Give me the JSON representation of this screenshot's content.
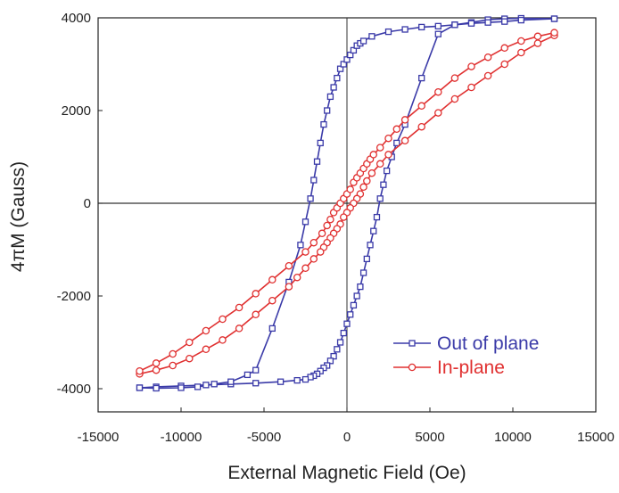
{
  "chart_data": {
    "type": "line",
    "title": "",
    "xlabel": "External Magnetic Field (Oe)",
    "ylabel": "4πM (Gauss)",
    "xlim": [
      -15000,
      15000
    ],
    "ylim": [
      -4500,
      4000
    ],
    "xticks": [
      -15000,
      -10000,
      -5000,
      0,
      5000,
      10000,
      15000
    ],
    "yticks": [
      -4000,
      -2000,
      0,
      2000,
      4000
    ],
    "xtick_labels": [
      "-15000",
      "-10000",
      "-5000",
      "0",
      "5000",
      "10000",
      "15000"
    ],
    "ytick_labels": [
      "-4000",
      "-2000",
      "0",
      "2000",
      "4000"
    ],
    "zero_lines": true,
    "grid": false,
    "legend_position": "bottom-right",
    "series": [
      {
        "name": "Out of plane",
        "color": "#3a3aa8",
        "marker": "square",
        "branches": [
          {
            "x": [
              12500,
              10500,
              9500,
              8500,
              7500,
              6500,
              5500,
              4500,
              3500,
              3000,
              2700,
              2400,
              2200,
              2000,
              1800,
              1600,
              1400,
              1200,
              1000,
              800,
              600,
              400,
              200,
              0,
              -200,
              -400,
              -600,
              -800,
              -1000,
              -1200,
              -1400,
              -1600,
              -1800,
              -2000,
              -2200,
              -2500,
              -3000,
              -4000,
              -5500,
              -7000,
              -8500,
              -10000,
              -11500,
              -12500
            ],
            "y": [
              3980,
              3990,
              3980,
              3960,
              3900,
              3850,
              3650,
              2700,
              1700,
              1300,
              1000,
              700,
              400,
              100,
              -300,
              -600,
              -900,
              -1200,
              -1500,
              -1800,
              -2000,
              -2200,
              -2400,
              -2600,
              -2800,
              -3000,
              -3150,
              -3300,
              -3400,
              -3500,
              -3550,
              -3620,
              -3680,
              -3720,
              -3750,
              -3800,
              -3820,
              -3850,
              -3880,
              -3900,
              -3920,
              -3940,
              -3960,
              -3980
            ]
          },
          {
            "x": [
              -12500,
              -11500,
              -10000,
              -9000,
              -8000,
              -7000,
              -6000,
              -5500,
              -4500,
              -3500,
              -2800,
              -2500,
              -2200,
              -2000,
              -1800,
              -1600,
              -1400,
              -1200,
              -1000,
              -800,
              -600,
              -400,
              -200,
              0,
              200,
              400,
              600,
              800,
              1000,
              1500,
              2500,
              3500,
              4500,
              5500,
              6500,
              7500,
              8500,
              9500,
              10500,
              12500
            ],
            "y": [
              -3980,
              -3990,
              -3980,
              -3960,
              -3900,
              -3850,
              -3700,
              -3600,
              -2700,
              -1700,
              -900,
              -400,
              100,
              500,
              900,
              1300,
              1700,
              2000,
              2300,
              2500,
              2700,
              2900,
              3000,
              3100,
              3200,
              3300,
              3400,
              3450,
              3500,
              3600,
              3700,
              3750,
              3800,
              3820,
              3850,
              3880,
              3900,
              3920,
              3950,
              3980
            ]
          }
        ]
      },
      {
        "name": "In-plane",
        "color": "#e03030",
        "marker": "circle",
        "branches": [
          {
            "x": [
              12500,
              11500,
              10500,
              9500,
              8500,
              7500,
              6500,
              5500,
              4500,
              3500,
              2500,
              2000,
              1500,
              1200,
              1000,
              800,
              600,
              400,
              200,
              0,
              -200,
              -400,
              -600,
              -800,
              -1000,
              -1200,
              -1400,
              -1600,
              -2000,
              -2500,
              -3000,
              -3500,
              -4500,
              -5500,
              -6500,
              -7500,
              -8500,
              -9500,
              -10500,
              -11500,
              -12500
            ],
            "y": [
              3620,
              3450,
              3250,
              3000,
              2750,
              2500,
              2250,
              1950,
              1650,
              1350,
              1050,
              850,
              650,
              480,
              350,
              200,
              100,
              0,
              -100,
              -200,
              -300,
              -450,
              -550,
              -650,
              -750,
              -850,
              -950,
              -1050,
              -1200,
              -1400,
              -1600,
              -1800,
              -2100,
              -2400,
              -2700,
              -2950,
              -3150,
              -3350,
              -3500,
              -3600,
              -3680
            ]
          },
          {
            "x": [
              -12500,
              -11500,
              -10500,
              -9500,
              -8500,
              -7500,
              -6500,
              -5500,
              -4500,
              -3500,
              -2500,
              -2000,
              -1500,
              -1200,
              -1000,
              -800,
              -600,
              -400,
              -200,
              0,
              200,
              400,
              600,
              800,
              1000,
              1200,
              1400,
              1600,
              2000,
              2500,
              3000,
              3500,
              4500,
              5500,
              6500,
              7500,
              8500,
              9500,
              10500,
              11500,
              12500
            ],
            "y": [
              -3620,
              -3450,
              -3250,
              -3000,
              -2750,
              -2500,
              -2250,
              -1950,
              -1650,
              -1350,
              -1050,
              -850,
              -650,
              -480,
              -350,
              -200,
              -100,
              0,
              100,
              200,
              300,
              450,
              550,
              650,
              750,
              850,
              950,
              1050,
              1200,
              1400,
              1600,
              1800,
              2100,
              2400,
              2700,
              2950,
              3150,
              3350,
              3500,
              3600,
              3680
            ]
          }
        ]
      }
    ]
  }
}
